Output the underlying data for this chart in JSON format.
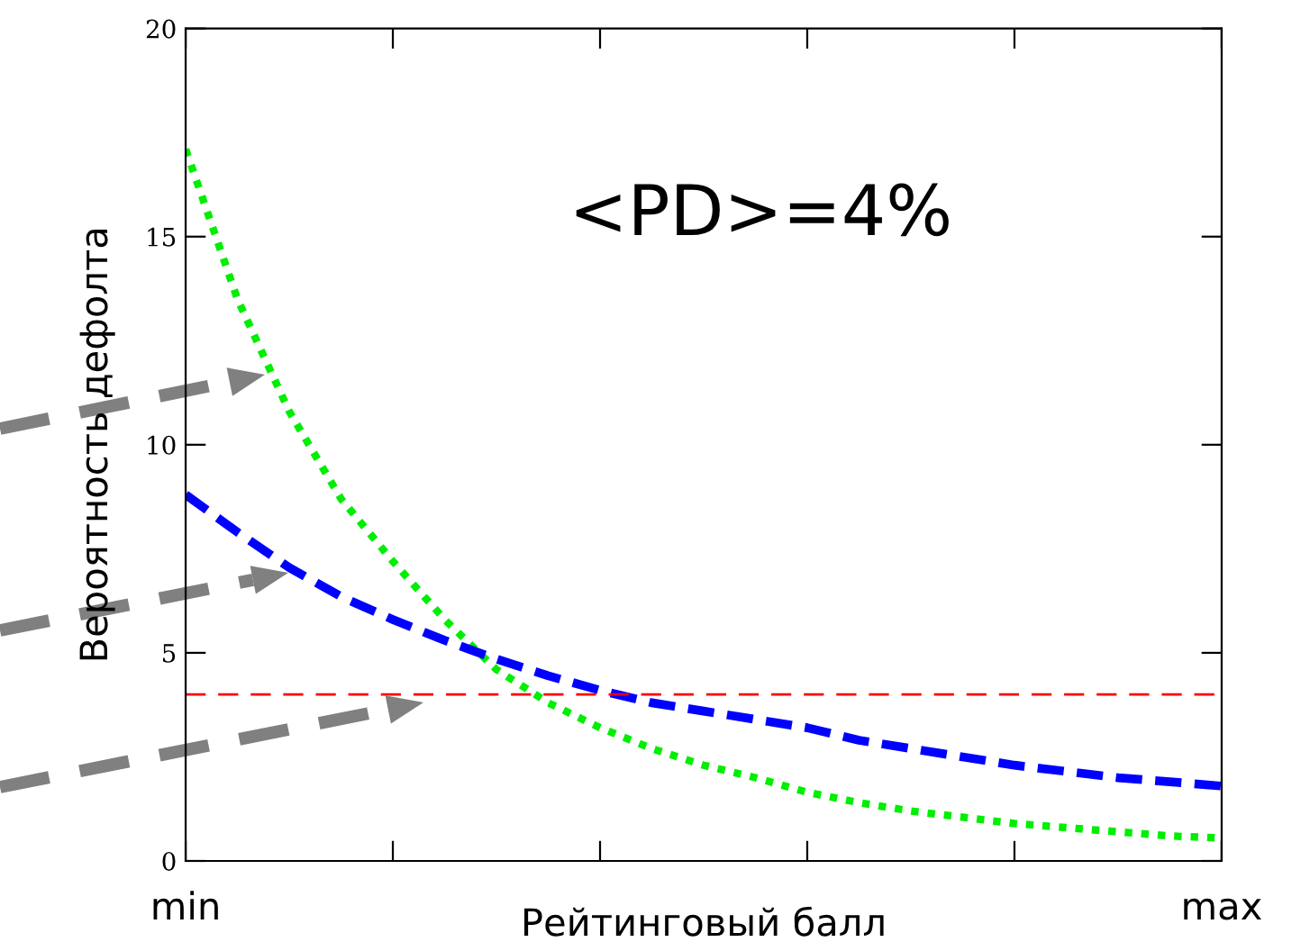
{
  "chart_data": {
    "type": "line",
    "xlabel": "Рейтинговый балл",
    "ylabel": "Вероятность дефолта",
    "annotations": [
      "<PD>=4%"
    ],
    "categories": [
      "min",
      null,
      null,
      null,
      null,
      null,
      null,
      null,
      null,
      null,
      null,
      null,
      null,
      null,
      null,
      null,
      null,
      null,
      null,
      null,
      "max"
    ],
    "ylim": [
      0,
      20
    ],
    "yticks": [
      0,
      5,
      10,
      15,
      20
    ],
    "series": [
      {
        "color": "#00ee00",
        "line_style": "dotted",
        "values": [
          17.1,
          13.5,
          10.8,
          8.7,
          7.2,
          5.8,
          4.6,
          3.8,
          3.2,
          2.7,
          2.3,
          2.0,
          1.65,
          1.4,
          1.2,
          1.05,
          0.9,
          0.8,
          0.7,
          0.6,
          0.55
        ]
      },
      {
        "color": "#0000ff",
        "line_style": "dashed",
        "values": [
          8.8,
          7.9,
          7.05,
          6.35,
          5.8,
          5.3,
          4.85,
          4.45,
          4.1,
          3.8,
          3.6,
          3.4,
          3.2,
          2.9,
          2.7,
          2.5,
          2.3,
          2.15,
          2.0,
          1.9,
          1.8
        ]
      }
    ],
    "ref_lines": [
      {
        "axis": "y",
        "value": 4,
        "color": "#ff0000",
        "line_style": "dashed"
      }
    ]
  }
}
